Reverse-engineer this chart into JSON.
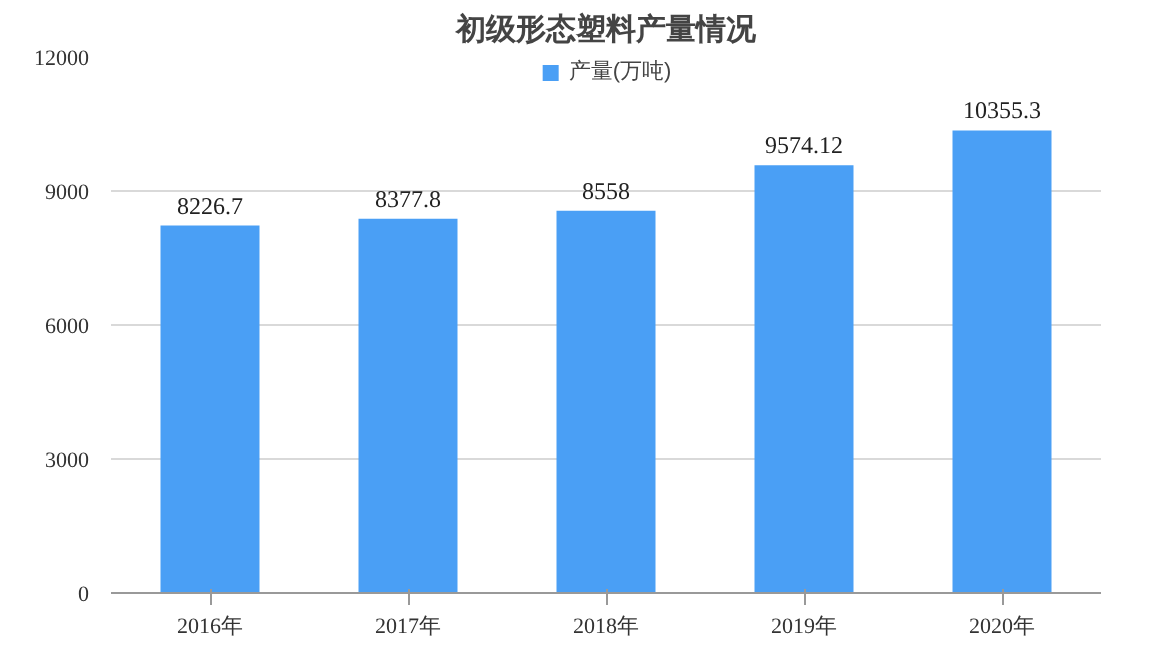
{
  "chart_data": {
    "type": "bar",
    "title": "初级形态塑料产量情况",
    "categories": [
      "2016年",
      "2017年",
      "2018年",
      "2019年",
      "2020年"
    ],
    "series": [
      {
        "name": "产量(万吨)",
        "color": "#4a9ff5",
        "values": [
          8226.7,
          8377.8,
          8558,
          9574.12,
          10355.3
        ]
      }
    ],
    "ylim": [
      0,
      12000
    ],
    "yticks": [
      0,
      3000,
      6000,
      9000,
      12000
    ],
    "grid": "y",
    "legend": "top",
    "data_labels": true
  }
}
